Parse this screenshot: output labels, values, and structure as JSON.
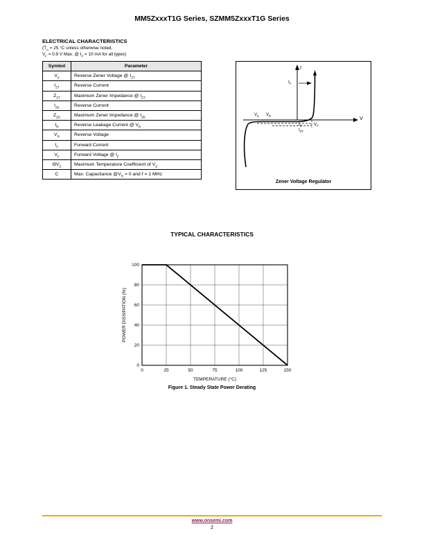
{
  "page": {
    "title": "MM5ZxxxT1G Series, SZMM5ZxxxT1G Series",
    "footer": {
      "url": "www.onsemi.com",
      "page_number": "2",
      "rule_color": "#f2a900",
      "link_color": "#8a1a4a"
    }
  },
  "electrical": {
    "heading": "ELECTRICAL CHARACTERISTICS",
    "note_line1": "(T~A~ = 25 °C unless otherwise noted,",
    "note_line2": "V~F~ = 0.9 V Max. @ I~F~ = 10 mA for all types)",
    "table": {
      "headers": [
        "Symbol",
        "Parameter"
      ],
      "rows": [
        {
          "symbol": "V~Z~",
          "parameter": "Reverse Zener Voltage @ I~ZT~"
        },
        {
          "symbol": "I~ZT~",
          "parameter": "Reverse Current"
        },
        {
          "symbol": "Z~ZT~",
          "parameter": "Maximum Zener Impedance @ I~ZT~"
        },
        {
          "symbol": "I~ZK~",
          "parameter": "Reverse Current"
        },
        {
          "symbol": "Z~ZK~",
          "parameter": "Maximum Zener Impedance @ I~ZK~"
        },
        {
          "symbol": "I~R~",
          "parameter": "Reverse Leakage Current @ V~R~"
        },
        {
          "symbol": "V~R~",
          "parameter": "Reverse Voltage"
        },
        {
          "symbol": "I~F~",
          "parameter": "Forward Current"
        },
        {
          "symbol": "V~F~",
          "parameter": "Forward Voltage @ I~F~"
        },
        {
          "symbol": "ΘV~Z~",
          "parameter": "Maximum Temperature Coefficient of V~Z~"
        },
        {
          "symbol": "C",
          "parameter": "Max. Capacitance @V~R~ = 0 and f = 1 MHz"
        }
      ]
    }
  },
  "diagram": {
    "caption": "Zener Voltage Regulator",
    "labels": {
      "i": "I",
      "v": "V",
      "if": "I~F~",
      "vz": "V~Z~",
      "vr": "V~R~",
      "ir": "I~R~",
      "izt": "I~ZT~",
      "vf": "V~F~"
    }
  },
  "typical_heading": "TYPICAL CHARACTERISTICS",
  "figure_caption": "Figure 1. Steady State Power Derating",
  "chart_data": {
    "type": "line",
    "title": "Steady State Power Derating",
    "xlabel": "TEMPERATURE (°C)",
    "ylabel": "POWER DISSIPATION (%)",
    "xlim": [
      0,
      150
    ],
    "ylim": [
      0,
      100
    ],
    "xticks": [
      0,
      25,
      50,
      75,
      100,
      125,
      150
    ],
    "yticks": [
      0,
      20,
      40,
      60,
      80,
      100
    ],
    "grid": true,
    "legend": "none",
    "points": [
      [
        0,
        100
      ],
      [
        25,
        100
      ],
      [
        150,
        0
      ]
    ]
  }
}
